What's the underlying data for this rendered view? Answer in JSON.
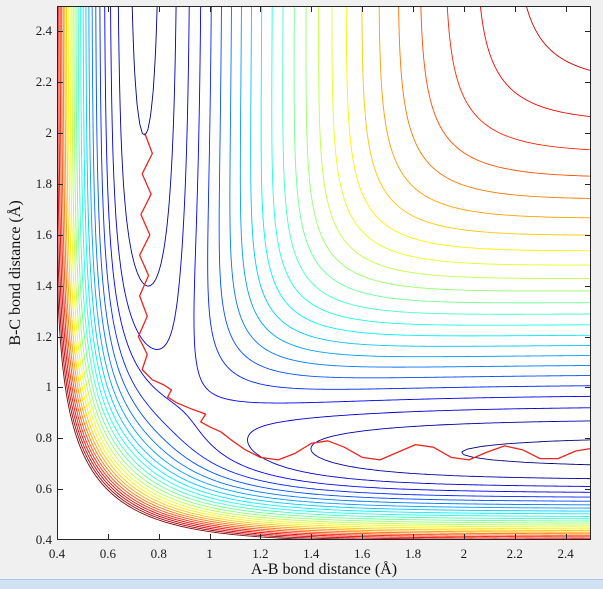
{
  "chart_data": {
    "type": "contour",
    "title": "",
    "xlabel": "A-B bond distance (Å)",
    "ylabel": "B-C bond distance (Å)",
    "x_range": [
      0.4,
      2.5
    ],
    "y_range": [
      0.4,
      2.5
    ],
    "x_ticks": [
      0.4,
      0.6,
      0.8,
      1,
      1.2,
      1.4,
      1.6,
      1.8,
      2,
      2.2,
      2.4
    ],
    "y_ticks": [
      0.4,
      0.6,
      0.8,
      1,
      1.2,
      1.4,
      1.6,
      1.8,
      2,
      2.2,
      2.4
    ],
    "grid": false,
    "legend": "none",
    "colormap": "jet",
    "axis_color": "#262626",
    "plot_background": "#ffffff",
    "potential": {
      "model": "collinear LEPS surface V(rAB, rBC), rAC = rAB + rBC",
      "D": 4.746,
      "alpha": 1.942,
      "r0": 0.742,
      "S": 0.1
    },
    "levels": [
      -4.68,
      -4.5,
      -4.32,
      -4.14,
      -3.96,
      -3.78,
      -3.6,
      -3.42,
      -3.24,
      -3.06,
      -2.88,
      -2.7,
      -2.52,
      -2.34,
      -2.16,
      -1.98,
      -1.8,
      -1.62,
      -1.44,
      -1.26,
      -1.08,
      -0.9,
      -0.72,
      -0.54,
      -0.36,
      -0.18
    ],
    "trajectory": {
      "color": "#e8261f",
      "points": [
        [
          0.745,
          2.0
        ],
        [
          0.775,
          1.92
        ],
        [
          0.735,
          1.84
        ],
        [
          0.77,
          1.76
        ],
        [
          0.73,
          1.68
        ],
        [
          0.765,
          1.6
        ],
        [
          0.725,
          1.52
        ],
        [
          0.76,
          1.44
        ],
        [
          0.725,
          1.36
        ],
        [
          0.755,
          1.28
        ],
        [
          0.72,
          1.2
        ],
        [
          0.755,
          1.13
        ],
        [
          0.735,
          1.07
        ],
        [
          0.775,
          1.03
        ],
        [
          0.82,
          1.01
        ],
        [
          0.85,
          0.99
        ],
        [
          0.835,
          0.962
        ],
        [
          0.87,
          0.94
        ],
        [
          0.93,
          0.915
        ],
        [
          0.985,
          0.895
        ],
        [
          0.965,
          0.865
        ],
        [
          1.0,
          0.845
        ],
        [
          1.045,
          0.825
        ],
        [
          1.09,
          0.79
        ],
        [
          1.14,
          0.755
        ],
        [
          1.2,
          0.725
        ],
        [
          1.27,
          0.715
        ],
        [
          1.335,
          0.74
        ],
        [
          1.4,
          0.78
        ],
        [
          1.465,
          0.79
        ],
        [
          1.53,
          0.765
        ],
        [
          1.6,
          0.725
        ],
        [
          1.67,
          0.715
        ],
        [
          1.74,
          0.745
        ],
        [
          1.81,
          0.775
        ],
        [
          1.88,
          0.765
        ],
        [
          1.95,
          0.725
        ],
        [
          2.02,
          0.715
        ],
        [
          2.09,
          0.745
        ],
        [
          2.16,
          0.77
        ],
        [
          2.23,
          0.755
        ],
        [
          2.3,
          0.72
        ],
        [
          2.37,
          0.72
        ],
        [
          2.44,
          0.75
        ],
        [
          2.5,
          0.76
        ]
      ]
    }
  },
  "window": {
    "figure_background": "#f0f0f0",
    "edge_strip_color": "#cfe1f3",
    "edge_strip_border": "#a9c7e4"
  }
}
